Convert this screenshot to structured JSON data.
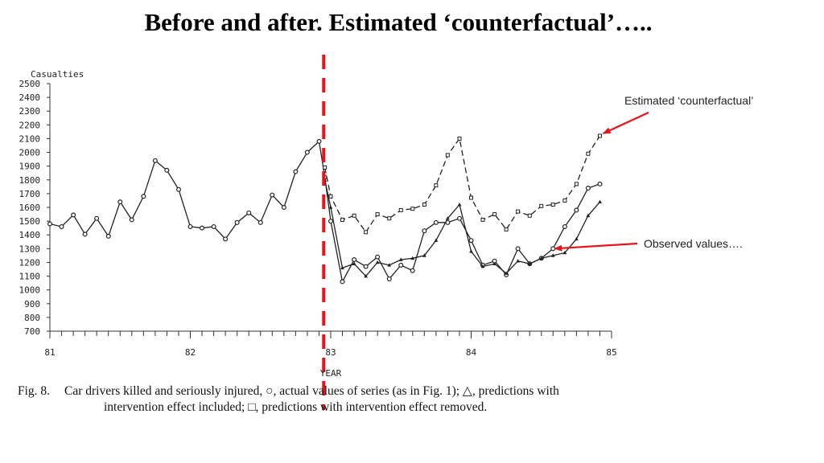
{
  "slide": {
    "title": "Before and after. Estimated ‘counterfactual’….."
  },
  "annotations": {
    "counterfactual": "Estimated ‘counterfactual’",
    "observed": "Observed values…."
  },
  "caption": {
    "fig_label": "Fig. 8.",
    "line1": "Car drivers killed and seriously injured, ○, actual values of series (as in Fig. 1); △, predictions with",
    "line2": "intervention effect included; □, predictions with intervention effect removed."
  },
  "colors": {
    "intervention_line": "#e8141a",
    "arrow": "#e8141a",
    "series": "#222222"
  },
  "chart_data": {
    "type": "line",
    "ylabel": "Casualties",
    "xlabel": "YEAR",
    "ylim": [
      700,
      2500
    ],
    "yticks": [
      2500,
      2400,
      2300,
      2200,
      2100,
      2000,
      1900,
      1800,
      1700,
      1600,
      1500,
      1400,
      1300,
      1200,
      1100,
      1000,
      900,
      800,
      700
    ],
    "xlim": [
      81,
      85
    ],
    "xticks": [
      81,
      82,
      83,
      84,
      85
    ],
    "intervention_year": 82.95,
    "series": [
      {
        "marker": "circle",
        "style": "solid",
        "x": [
          81.0,
          81.083,
          81.167,
          81.25,
          81.333,
          81.417,
          81.5,
          81.583,
          81.667,
          81.75,
          81.833,
          81.917,
          82.0,
          82.083,
          82.167,
          82.25,
          82.333,
          82.417,
          82.5,
          82.583,
          82.667,
          82.75,
          82.833,
          82.917,
          82.958,
          83.0,
          83.083,
          83.167,
          83.25,
          83.333,
          83.417,
          83.5,
          83.583,
          83.667,
          83.75,
          83.833,
          83.917,
          84.0,
          84.083,
          84.167,
          84.25,
          84.333,
          84.417,
          84.5,
          84.583,
          84.667,
          84.75,
          84.833,
          84.917
        ],
        "values": [
          1480,
          1460,
          1545,
          1405,
          1520,
          1390,
          1640,
          1510,
          1680,
          1940,
          1870,
          1730,
          1460,
          1450,
          1460,
          1370,
          1490,
          1560,
          1490,
          1690,
          1600,
          1860,
          2000,
          2080,
          1820,
          1500,
          1060,
          1220,
          1170,
          1240,
          1080,
          1180,
          1140,
          1430,
          1490,
          1490,
          1520,
          1360,
          1180,
          1210,
          1110,
          1300,
          1190,
          1230,
          1300,
          1460,
          1580,
          1740,
          1770
        ]
      },
      {
        "marker": "triangle",
        "style": "solid",
        "x": [
          82.958,
          83.0,
          83.083,
          83.167,
          83.25,
          83.333,
          83.417,
          83.5,
          83.583,
          83.667,
          83.75,
          83.833,
          83.917,
          84.0,
          84.083,
          84.167,
          84.25,
          84.333,
          84.417,
          84.5,
          84.583,
          84.667,
          84.75,
          84.833,
          84.917
        ],
        "values": [
          1800,
          1600,
          1160,
          1190,
          1100,
          1200,
          1180,
          1220,
          1230,
          1250,
          1360,
          1520,
          1620,
          1280,
          1170,
          1190,
          1120,
          1210,
          1190,
          1230,
          1250,
          1270,
          1370,
          1540,
          1640
        ]
      },
      {
        "marker": "square",
        "style": "dashed",
        "x": [
          82.958,
          83.0,
          83.083,
          83.167,
          83.25,
          83.333,
          83.417,
          83.5,
          83.583,
          83.667,
          83.75,
          83.833,
          83.917,
          84.0,
          84.083,
          84.167,
          84.25,
          84.333,
          84.417,
          84.5,
          84.583,
          84.667,
          84.75,
          84.833,
          84.917
        ],
        "values": [
          1890,
          1680,
          1510,
          1540,
          1420,
          1550,
          1520,
          1580,
          1590,
          1620,
          1760,
          1980,
          2100,
          1670,
          1510,
          1550,
          1440,
          1570,
          1540,
          1610,
          1620,
          1650,
          1770,
          1990,
          2120
        ]
      }
    ]
  }
}
